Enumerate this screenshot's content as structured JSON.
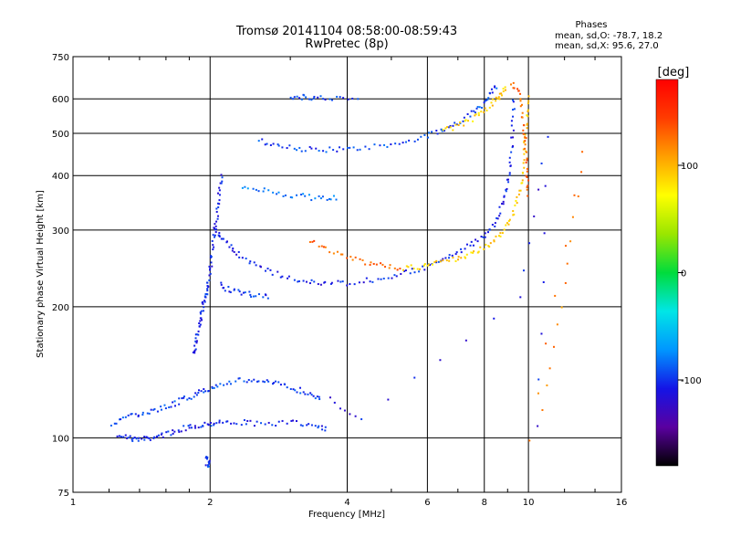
{
  "chart_data": {
    "type": "scatter",
    "title": "Tromsø 20141104 08:58:00-08:59:43",
    "subtitle": "RwPretec (8p)",
    "xlabel": "Frequency [MHz]",
    "ylabel": "Stationary phase Virtual Height [km]",
    "x_scale": "log",
    "y_scale": "log",
    "xlim": [
      1,
      16
    ],
    "ylim": [
      75,
      750
    ],
    "x_ticks": [
      1,
      2,
      4,
      6,
      8,
      10,
      16
    ],
    "x_tick_labels": [
      "1",
      "2",
      "4",
      "6",
      "8",
      "10",
      "16"
    ],
    "y_ticks": [
      75,
      100,
      200,
      300,
      400,
      500,
      600,
      750
    ],
    "y_tick_labels": [
      "75",
      "100",
      "200",
      "300",
      "400",
      "500",
      "600",
      "750"
    ],
    "grid": true,
    "stats": {
      "heading": "Phases",
      "o_line": "mean, sd,O: -78.7, 18.2",
      "x_line": "mean, sd,X:  95.6, 27.0"
    },
    "colorbar": {
      "label": "[deg]",
      "range": [
        -180,
        180
      ],
      "ticks": [
        -100,
        0,
        100
      ],
      "tick_labels": [
        "-100",
        "0",
        "100"
      ],
      "colors": [
        "#000000",
        "#5a00a0",
        "#1414e6",
        "#0096ff",
        "#00e6e6",
        "#00dc3c",
        "#9ae600",
        "#ffff00",
        "#ffa000",
        "#ff3c00",
        "#ff0000"
      ]
    },
    "series": [
      {
        "phase": -105,
        "points": [
          [
            1.26,
            102
          ],
          [
            1.32,
            100
          ],
          [
            1.38,
            99
          ],
          [
            1.45,
            99.5
          ],
          [
            1.52,
            100.5
          ],
          [
            1.6,
            102
          ],
          [
            1.7,
            104
          ],
          [
            1.8,
            106
          ],
          [
            1.9,
            107
          ],
          [
            2.0,
            108
          ],
          [
            2.1,
            108.5
          ],
          [
            2.3,
            108.5
          ],
          [
            2.5,
            108
          ],
          [
            2.8,
            108
          ],
          [
            3.1,
            108
          ],
          [
            3.4,
            107
          ],
          [
            3.6,
            105
          ]
        ]
      },
      {
        "phase": -95,
        "points": [
          [
            1.22,
            108
          ],
          [
            1.3,
            111
          ],
          [
            1.4,
            113
          ],
          [
            1.5,
            115
          ],
          [
            1.6,
            118
          ],
          [
            1.7,
            121
          ],
          [
            1.8,
            124
          ],
          [
            1.9,
            127
          ],
          [
            2.0,
            130
          ],
          [
            2.1,
            133
          ],
          [
            2.3,
            135
          ],
          [
            2.5,
            136
          ],
          [
            2.7,
            134
          ],
          [
            2.9,
            132
          ],
          [
            3.1,
            129
          ],
          [
            3.3,
            126
          ],
          [
            3.5,
            124
          ]
        ]
      },
      {
        "phase": -100,
        "points": [
          [
            1.95,
            90
          ],
          [
            2.0,
            88
          ],
          [
            1.97,
            86
          ]
        ]
      },
      {
        "phase": -105,
        "points": [
          [
            1.84,
            155
          ],
          [
            1.86,
            165
          ],
          [
            1.88,
            175
          ],
          [
            1.9,
            185
          ],
          [
            1.92,
            195
          ],
          [
            1.94,
            205
          ],
          [
            1.96,
            215
          ],
          [
            1.98,
            225
          ],
          [
            2.0,
            240
          ],
          [
            2.02,
            260
          ],
          [
            2.04,
            285
          ],
          [
            2.06,
            310
          ],
          [
            2.08,
            340
          ],
          [
            2.1,
            370
          ],
          [
            2.12,
            400
          ]
        ]
      },
      {
        "phase": -105,
        "points": [
          [
            2.05,
            300
          ],
          [
            2.1,
            290
          ],
          [
            2.2,
            275
          ],
          [
            2.3,
            265
          ],
          [
            2.5,
            250
          ],
          [
            2.7,
            240
          ],
          [
            3.0,
            232
          ],
          [
            3.3,
            228
          ],
          [
            3.6,
            226
          ],
          [
            4.0,
            227
          ],
          [
            4.5,
            230
          ],
          [
            5.0,
            235
          ],
          [
            5.5,
            240
          ],
          [
            6.0,
            248
          ],
          [
            6.5,
            256
          ],
          [
            7.0,
            266
          ],
          [
            7.5,
            278
          ],
          [
            8.0,
            292
          ],
          [
            8.4,
            310
          ],
          [
            8.7,
            335
          ],
          [
            8.9,
            365
          ],
          [
            9.05,
            400
          ],
          [
            9.15,
            450
          ],
          [
            9.25,
            520
          ],
          [
            9.3,
            600
          ]
        ]
      },
      {
        "phase": -100,
        "points": [
          [
            2.1,
            225
          ],
          [
            2.2,
            218
          ],
          [
            2.35,
            215
          ],
          [
            2.5,
            213
          ],
          [
            2.7,
            212
          ]
        ]
      },
      {
        "phase": 130,
        "points": [
          [
            3.3,
            285
          ],
          [
            3.6,
            270
          ],
          [
            4.0,
            260
          ],
          [
            4.4,
            252
          ],
          [
            4.8,
            248
          ],
          [
            5.2,
            246
          ]
        ]
      },
      {
        "phase": 90,
        "points": [
          [
            5.3,
            245
          ],
          [
            5.8,
            247
          ],
          [
            6.2,
            250
          ],
          [
            6.8,
            256
          ],
          [
            7.3,
            262
          ],
          [
            7.8,
            270
          ],
          [
            8.3,
            280
          ],
          [
            8.7,
            295
          ],
          [
            9.1,
            315
          ],
          [
            9.4,
            345
          ],
          [
            9.6,
            380
          ],
          [
            9.75,
            425
          ],
          [
            9.85,
            480
          ],
          [
            9.92,
            540
          ],
          [
            9.96,
            600
          ]
        ]
      },
      {
        "phase": -95,
        "points": [
          [
            2.55,
            480
          ],
          [
            2.8,
            470
          ],
          [
            3.1,
            462
          ],
          [
            3.4,
            458
          ],
          [
            3.8,
            458
          ],
          [
            4.2,
            462
          ],
          [
            4.8,
            470
          ],
          [
            5.4,
            480
          ],
          [
            6.0,
            495
          ],
          [
            6.5,
            510
          ],
          [
            7.0,
            530
          ],
          [
            7.5,
            555
          ],
          [
            7.9,
            580
          ],
          [
            8.2,
            610
          ],
          [
            8.5,
            640
          ]
        ]
      },
      {
        "phase": 90,
        "points": [
          [
            6.5,
            505
          ],
          [
            7.0,
            520
          ],
          [
            7.5,
            540
          ],
          [
            8.0,
            560
          ],
          [
            8.4,
            590
          ],
          [
            8.7,
            615
          ],
          [
            8.9,
            640
          ]
        ]
      },
      {
        "phase": 130,
        "points": [
          [
            9.2,
            650
          ],
          [
            9.5,
            620
          ],
          [
            9.7,
            560
          ],
          [
            9.8,
            500
          ],
          [
            9.9,
            450
          ],
          [
            9.95,
            400
          ],
          [
            10.0,
            360
          ]
        ]
      },
      {
        "phase": -80,
        "points": [
          [
            2.35,
            375
          ],
          [
            2.6,
            370
          ],
          [
            2.9,
            362
          ],
          [
            3.2,
            358
          ],
          [
            3.5,
            355
          ],
          [
            3.8,
            356
          ]
        ]
      },
      {
        "phase": -100,
        "points": [
          [
            3.0,
            608
          ],
          [
            3.2,
            605
          ],
          [
            3.4,
            603
          ],
          [
            3.7,
            604
          ],
          [
            4.2,
            600
          ]
        ]
      },
      {
        "phase": 120,
        "points": [
          [
            10.7,
            117
          ],
          [
            12.0,
            225
          ],
          [
            13.2,
            460
          ],
          [
            10.0,
            98
          ]
        ]
      },
      {
        "phase": -110,
        "points": [
          [
            3.65,
            122
          ],
          [
            4.3,
            110
          ],
          [
            9.6,
            210
          ],
          [
            11.0,
            492
          ],
          [
            10.5,
            105
          ]
        ]
      }
    ]
  }
}
